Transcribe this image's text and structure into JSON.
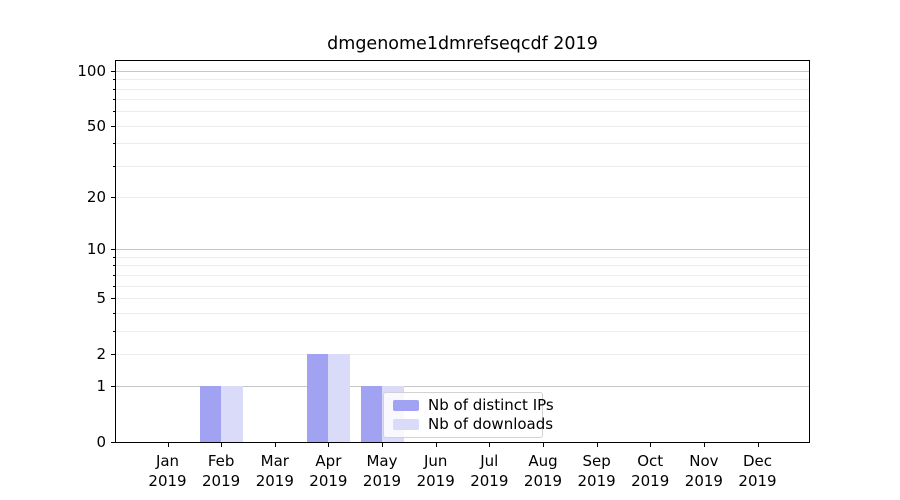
{
  "title": "dmgenome1dmrefseqcdf 2019",
  "chart_data": {
    "type": "bar",
    "title": "dmgenome1dmrefseqcdf 2019",
    "x_months": [
      "Jan",
      "Feb",
      "Mar",
      "Apr",
      "May",
      "Jun",
      "Jul",
      "Aug",
      "Sep",
      "Oct",
      "Nov",
      "Dec"
    ],
    "x_year": "2019",
    "categories": [
      "Jan 2019",
      "Feb 2019",
      "Mar 2019",
      "Apr 2019",
      "May 2019",
      "Jun 2019",
      "Jul 2019",
      "Aug 2019",
      "Sep 2019",
      "Oct 2019",
      "Nov 2019",
      "Dec 2019"
    ],
    "series": [
      {
        "name": "Nb of distinct IPs",
        "color": "#a2a2f2",
        "values": [
          0,
          1,
          0,
          2,
          1,
          0,
          0,
          0,
          0,
          0,
          0,
          0
        ]
      },
      {
        "name": "Nb of downloads",
        "color": "#dadaf9",
        "values": [
          0,
          1,
          0,
          2,
          1,
          0,
          0,
          0,
          0,
          0,
          0,
          0
        ]
      }
    ],
    "yscale": "log1p",
    "ylim": [
      0,
      113
    ],
    "yticks": [
      0,
      1,
      2,
      5,
      10,
      20,
      50,
      100
    ],
    "grid": "both",
    "grid_major_values": [
      1,
      10,
      100
    ],
    "grid_minor_values": [
      2,
      3,
      4,
      5,
      6,
      7,
      8,
      9,
      20,
      30,
      40,
      50,
      60,
      70,
      80,
      90
    ],
    "legend_position": "lower center"
  },
  "colors": {
    "bar_distinct_ips": "#a2a2f2",
    "bar_downloads": "#dadaf9",
    "grid_major": "#c6c6c6",
    "grid_minor": "#ededed",
    "spine": "#000000",
    "legend_border": "#d2d2d2",
    "legend_background": "rgba(255,255,255,0.8)"
  }
}
